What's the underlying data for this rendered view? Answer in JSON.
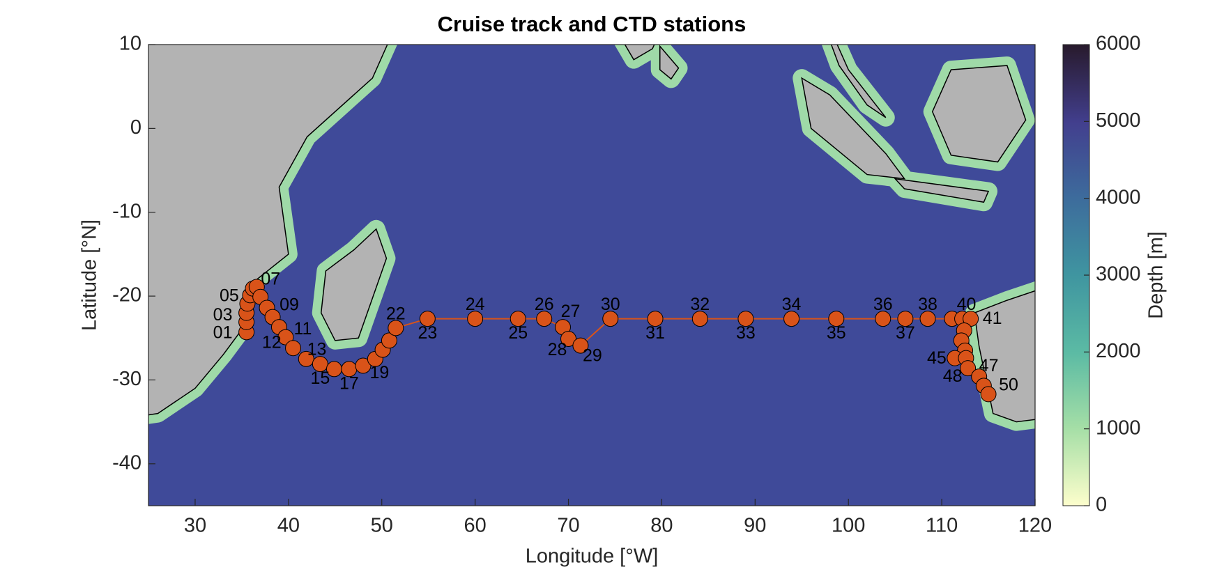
{
  "chart_data": {
    "type": "scatter",
    "title": "Cruise track and CTD stations",
    "xlabel": "Longitude [°W]",
    "ylabel": "Latitude [°N]",
    "xlim": [
      25,
      120
    ],
    "ylim": [
      -45,
      10
    ],
    "xticks": [
      30,
      40,
      50,
      60,
      70,
      80,
      90,
      100,
      110,
      120
    ],
    "yticks": [
      -40,
      -30,
      -20,
      -10,
      0,
      10
    ],
    "series": [
      {
        "color": "#d95319",
        "x": [
          35.5,
          35.5,
          35.5,
          35.6,
          35.9,
          36.2,
          36.6,
          37.0,
          37.7,
          38.3,
          39.0,
          39.7,
          40.5,
          41.9,
          43.4,
          44.9,
          46.5,
          48.0,
          49.3,
          50.1,
          50.8,
          51.5,
          54.9,
          60.0,
          64.6,
          67.4,
          69.4,
          70.0,
          71.3,
          74.5,
          79.3,
          84.1,
          89.0,
          93.9,
          98.7,
          103.7,
          106.1,
          108.5,
          111.1,
          112.2,
          113.1,
          112.4,
          112.1,
          112.5,
          111.4,
          112.6,
          112.8,
          114.0,
          114.5,
          115.0
        ],
        "y": [
          -24.3,
          -23.1,
          -22.0,
          -20.9,
          -19.9,
          -19.1,
          -18.9,
          -20.1,
          -21.4,
          -22.5,
          -23.7,
          -24.9,
          -26.2,
          -27.5,
          -28.1,
          -28.7,
          -28.7,
          -28.3,
          -27.5,
          -26.4,
          -25.3,
          -23.8,
          -22.7,
          -22.7,
          -22.7,
          -22.7,
          -23.7,
          -25.1,
          -25.9,
          -22.7,
          -22.7,
          -22.7,
          -22.7,
          -22.7,
          -22.7,
          -22.7,
          -22.7,
          -22.7,
          -22.7,
          -22.7,
          -22.7,
          -24.1,
          -25.3,
          -26.5,
          -27.4,
          -27.4,
          -28.6,
          -29.6,
          -30.7,
          -31.7
        ],
        "point_labels": [
          "01",
          null,
          "03",
          null,
          "05",
          null,
          "07",
          null,
          "09",
          null,
          "11",
          "12",
          "13",
          null,
          "15",
          null,
          "17",
          null,
          "19",
          null,
          null,
          "22",
          "23",
          "24",
          "25",
          "26",
          "27",
          "28",
          "29",
          "30",
          "31",
          "32",
          "33",
          "34",
          "35",
          "36",
          "37",
          "38",
          null,
          "40",
          "41",
          null,
          null,
          null,
          "45",
          null,
          "47",
          "48",
          null,
          "50"
        ]
      }
    ],
    "colorbar": {
      "label": "Depth [m]",
      "lim": [
        0,
        6000
      ],
      "ticks": [
        0,
        1000,
        2000,
        3000,
        4000,
        5000,
        6000
      ]
    }
  }
}
